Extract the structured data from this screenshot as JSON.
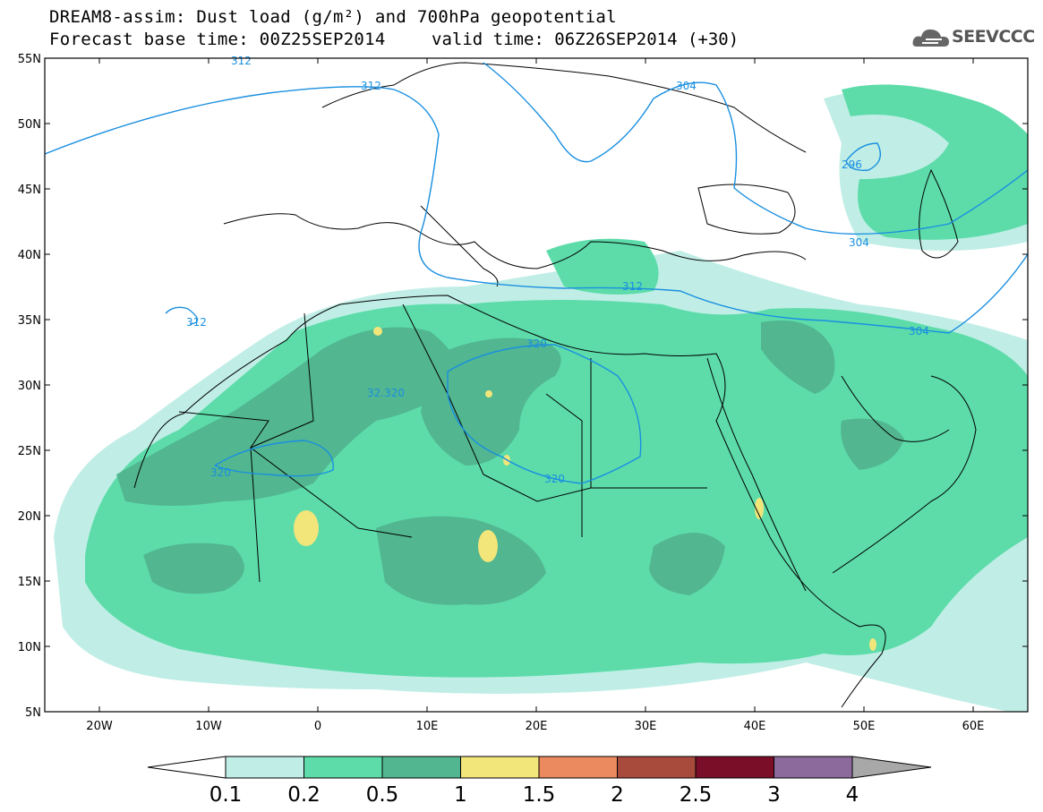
{
  "header": {
    "title_line1": "DREAM8-assim: Dust load (g/m²) and 700hPa geopotential",
    "title_line2": "Forecast base time: 00Z25SEP2014",
    "valid_time": "valid time: 06Z26SEP2014 (+30)",
    "logo_text": "SEEVCCC"
  },
  "map": {
    "lon_range": [
      -25,
      65
    ],
    "lat_range": [
      5,
      55
    ],
    "lat_labels": [
      "55N",
      "50N",
      "45N",
      "40N",
      "35N",
      "30N",
      "25N",
      "20N",
      "15N",
      "10N",
      "5N"
    ],
    "lon_labels": [
      "20W",
      "10W",
      "0",
      "10E",
      "20E",
      "30E",
      "40E",
      "50E",
      "60E"
    ],
    "contour_labels": [
      "304",
      "312",
      "296",
      "304",
      "312",
      "304",
      "312",
      "312",
      "320",
      "32.320",
      "320",
      "320"
    ]
  },
  "colorbar": {
    "ticks": [
      "0.1",
      "0.2",
      "0.5",
      "1",
      "1.5",
      "2",
      "2.5",
      "3",
      "4"
    ],
    "colors": [
      "#c0eee6",
      "#5ddcaa",
      "#52b690",
      "#f2e57a",
      "#ea8a5e",
      "#a84a3c",
      "#7a0e28",
      "#8c6a9c",
      "#a8a8a8"
    ]
  },
  "colors": {
    "level1": "#c0eee6",
    "level2": "#5ddcaa",
    "level3": "#52b690",
    "level4": "#f2e57a",
    "contour": "#1a8fe0"
  }
}
